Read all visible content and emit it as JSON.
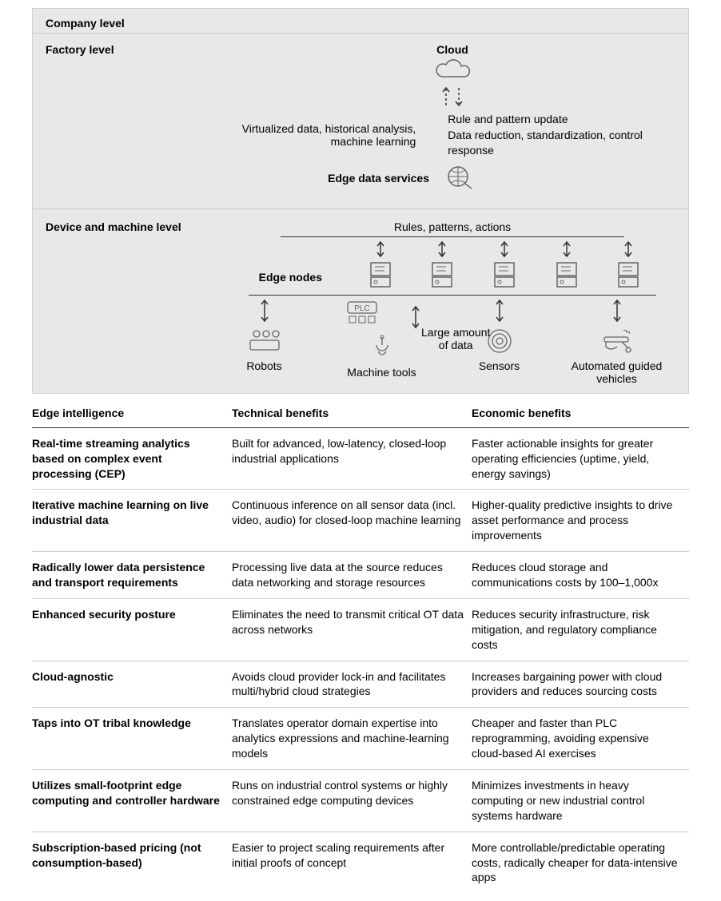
{
  "diagram": {
    "company_level": "Company level",
    "factory_level": "Factory level",
    "cloud_label": "Cloud",
    "eds_left": "Virtualized data, historical analysis, machine learning",
    "eds_label": "Edge data services",
    "eds_right_1": "Rule and pattern update",
    "eds_right_2": "Data reduction, standardization, control response",
    "rpa_label": "Rules, patterns, actions",
    "dml_label": "Device and machine level",
    "edge_nodes_label": "Edge nodes",
    "large_data_1": "Large amount",
    "large_data_2": "of data",
    "devices": [
      "Robots",
      "Machine tools",
      "Sensors",
      "Automated guided vehicles"
    ],
    "plc_label": "PLC",
    "colors": {
      "bg_gray": "#e8e8e8",
      "stroke": "#333333",
      "icon_stroke": "#666666"
    }
  },
  "table": {
    "headers": [
      "Edge intelligence",
      "Technical benefits",
      "Economic benefits"
    ],
    "rows": [
      {
        "edge": "Real-time streaming analytics based on complex event processing (CEP)",
        "tech": "Built for advanced, low-latency, closed-loop industrial applications",
        "econ": "Faster actionable insights for greater operating efficiencies (uptime, yield, energy savings)"
      },
      {
        "edge": "Iterative machine learning on live industrial data",
        "tech": "Continuous inference on all sensor data (incl. video, audio) for closed-loop machine learning",
        "econ": "Higher-quality predictive insights to drive asset performance and process improvements"
      },
      {
        "edge": "Radically lower data persistence and transport requirements",
        "tech": "Processing live data at the source reduces data networking and storage resources",
        "econ": "Reduces cloud storage and communications costs by 100–1,000x"
      },
      {
        "edge": "Enhanced security posture",
        "tech": "Eliminates the need to transmit critical OT data across networks",
        "econ": "Reduces security infrastructure, risk mitigation, and regulatory compliance costs"
      },
      {
        "edge": "Cloud-agnostic",
        "tech": "Avoids cloud provider lock-in and facilitates multi/hybrid cloud strategies",
        "econ": "Increases bargaining power with cloud providers and reduces sourcing costs"
      },
      {
        "edge": "Taps into OT tribal knowledge",
        "tech": "Translates operator domain expertise into analytics expressions and machine-learning models",
        "econ": "Cheaper and faster than PLC reprogramming, avoiding expensive cloud-based AI exercises"
      },
      {
        "edge": "Utilizes small-footprint edge computing and controller hardware",
        "tech": "Runs on industrial control systems or highly constrained edge computing devices",
        "econ": "Minimizes investments in heavy computing or new industrial control systems hardware"
      },
      {
        "edge": "Subscription-based pricing (not consumption-based)",
        "tech": "Easier to project scaling requirements after initial proofs of concept",
        "econ": "More controllable/predictable operating costs, radically cheaper for data-intensive apps"
      }
    ]
  }
}
